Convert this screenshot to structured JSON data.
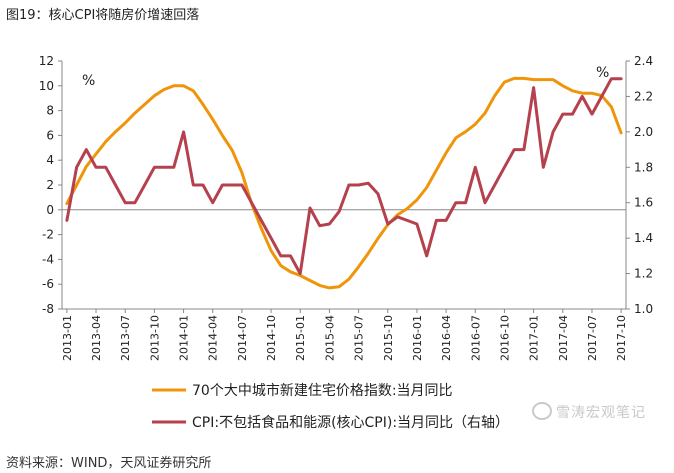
{
  "figure_title": "图19：核心CPI将随房价增速回落",
  "source_note": "资料来源：WIND，天风证券研究所",
  "watermark": "雪涛宏观笔记",
  "colors": {
    "housing": "#F0950A",
    "core_cpi": "#B5404E",
    "axis": "#888888",
    "text": "#222222"
  },
  "chart_data": {
    "type": "line",
    "title": "",
    "left_axis": {
      "unit": "%",
      "ylim": [
        -8,
        12
      ],
      "ticks": [
        -8,
        -6,
        -4,
        -2,
        0,
        2,
        4,
        6,
        8,
        10,
        12
      ]
    },
    "right_axis": {
      "unit": "%",
      "ylim": [
        1.0,
        2.4
      ],
      "ticks": [
        "1.0",
        "1.2",
        "1.4",
        "1.6",
        "1.8",
        "2.0",
        "2.2",
        "2.4"
      ]
    },
    "x_tick_labels": [
      "2013-01",
      "2013-04",
      "2013-07",
      "2013-10",
      "2014-01",
      "2014-04",
      "2014-07",
      "2014-10",
      "2015-01",
      "2015-04",
      "2015-07",
      "2015-10",
      "2016-01",
      "2016-04",
      "2016-07",
      "2016-10",
      "2017-01",
      "2017-04",
      "2017-07",
      "2017-10"
    ],
    "x": [
      "2013-01",
      "2013-02",
      "2013-03",
      "2013-04",
      "2013-05",
      "2013-06",
      "2013-07",
      "2013-08",
      "2013-09",
      "2013-10",
      "2013-11",
      "2013-12",
      "2014-01",
      "2014-02",
      "2014-03",
      "2014-04",
      "2014-05",
      "2014-06",
      "2014-07",
      "2014-08",
      "2014-09",
      "2014-10",
      "2014-11",
      "2014-12",
      "2015-01",
      "2015-02",
      "2015-03",
      "2015-04",
      "2015-05",
      "2015-06",
      "2015-07",
      "2015-08",
      "2015-09",
      "2015-10",
      "2015-11",
      "2015-12",
      "2016-01",
      "2016-02",
      "2016-03",
      "2016-04",
      "2016-05",
      "2016-06",
      "2016-07",
      "2016-08",
      "2016-09",
      "2016-10",
      "2016-11",
      "2016-12",
      "2017-01",
      "2017-02",
      "2017-03",
      "2017-04",
      "2017-05",
      "2017-06",
      "2017-07",
      "2017-08",
      "2017-09",
      "2017-10"
    ],
    "series": [
      {
        "name": "70个大中城市新建住宅价格指数:当月同比",
        "axis": "left",
        "values": [
          0.5,
          2.0,
          3.5,
          4.5,
          5.5,
          6.3,
          7.0,
          7.8,
          8.5,
          9.2,
          9.7,
          10.0,
          10.0,
          9.6,
          8.5,
          7.3,
          6.0,
          4.8,
          3.0,
          0.5,
          -1.5,
          -3.3,
          -4.5,
          -5.0,
          -5.3,
          -5.7,
          -6.1,
          -6.3,
          -6.2,
          -5.6,
          -4.6,
          -3.5,
          -2.3,
          -1.2,
          -0.4,
          0.1,
          0.8,
          1.8,
          3.2,
          4.6,
          5.8,
          6.3,
          6.9,
          7.8,
          9.2,
          10.3,
          10.6,
          10.6,
          10.5,
          10.5,
          10.5,
          10.0,
          9.6,
          9.4,
          9.4,
          9.2,
          8.3,
          6.2
        ]
      },
      {
        "name": "CPI:不包括食品和能源(核心CPI):当月同比（右轴）",
        "axis": "right",
        "values": [
          1.5,
          1.8,
          1.9,
          1.8,
          1.8,
          1.7,
          1.6,
          1.6,
          1.7,
          1.8,
          1.8,
          1.8,
          2.0,
          1.7,
          1.7,
          1.6,
          1.7,
          1.7,
          1.7,
          1.6,
          1.5,
          1.4,
          1.3,
          1.3,
          1.2,
          1.57,
          1.47,
          1.48,
          1.55,
          1.7,
          1.7,
          1.71,
          1.65,
          1.48,
          1.52,
          1.5,
          1.48,
          1.3,
          1.5,
          1.5,
          1.6,
          1.6,
          1.8,
          1.6,
          1.7,
          1.8,
          1.9,
          1.9,
          2.25,
          1.8,
          2.0,
          2.1,
          2.1,
          2.2,
          2.1,
          2.2,
          2.3,
          2.3
        ]
      }
    ],
    "legend": "bottom",
    "grid": false
  }
}
